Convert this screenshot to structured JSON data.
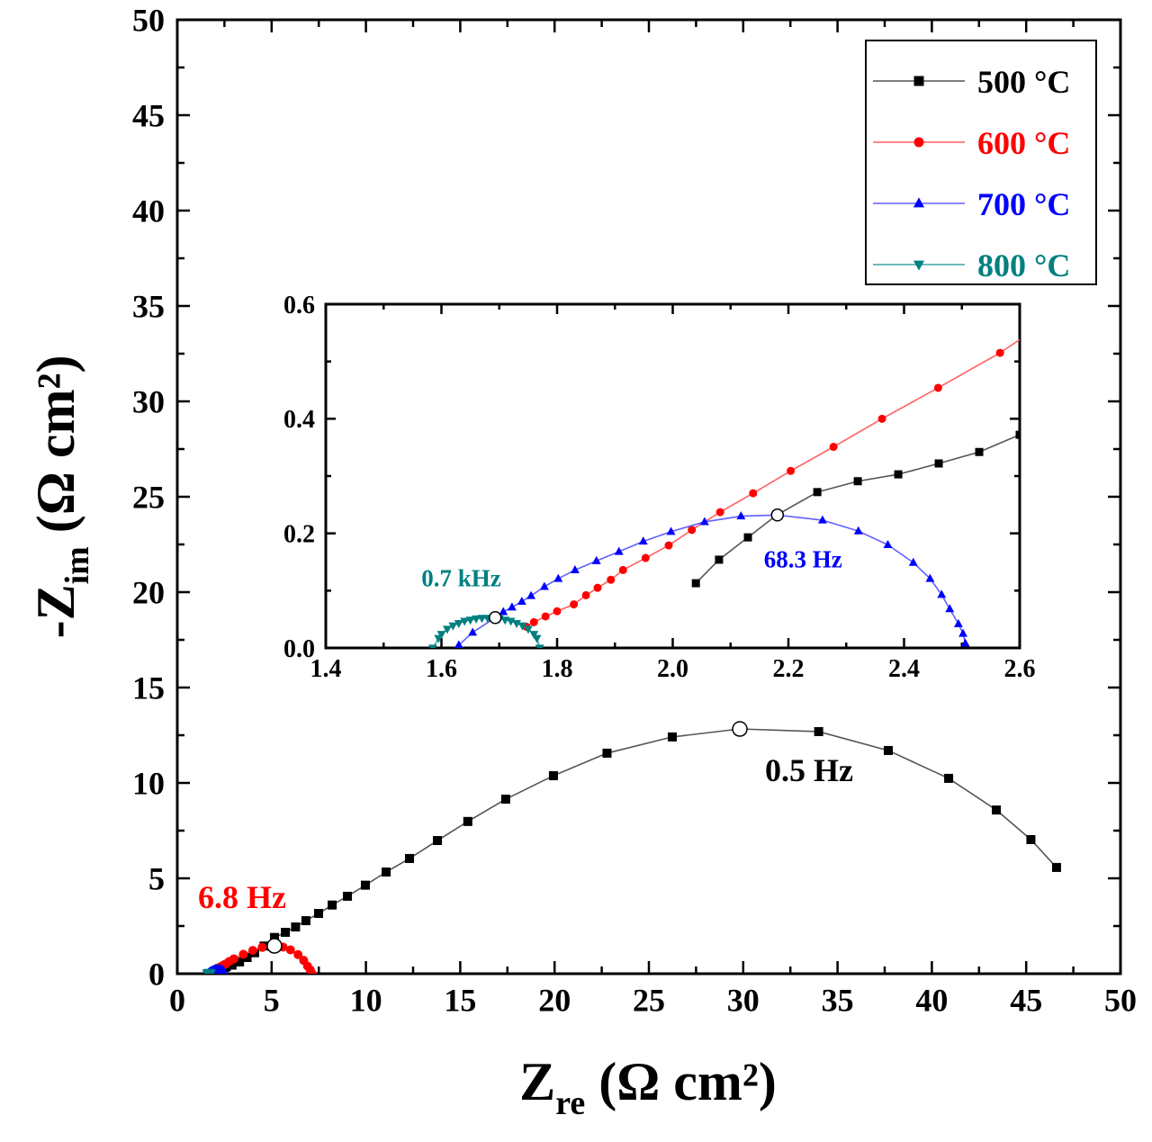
{
  "chart_data": {
    "type": "scatter",
    "main": {
      "xlabel": {
        "base": "Z",
        "sub": "re",
        "unit": "(Ω cm²)"
      },
      "ylabel": {
        "base": "-Z",
        "sub": "im",
        "unit": "(Ω cm²)"
      },
      "xlim": [
        0,
        50
      ],
      "ylim": [
        0,
        50
      ],
      "xticks": [
        0,
        5,
        10,
        15,
        20,
        25,
        30,
        35,
        40,
        45,
        50
      ],
      "yticks": [
        0,
        5,
        10,
        15,
        20,
        25,
        30,
        35,
        40,
        45,
        50
      ],
      "xtick_labels": [
        "0",
        "5",
        "10",
        "15",
        "20",
        "25",
        "30",
        "35",
        "40",
        "45",
        "50"
      ],
      "ytick_labels": [
        "0",
        "5",
        "10",
        "15",
        "20",
        "25",
        "30",
        "35",
        "40",
        "45",
        "50"
      ],
      "minor_step": 2.5,
      "grid": false
    },
    "inset": {
      "xlim": [
        1.4,
        2.6
      ],
      "ylim": [
        0,
        0.6
      ],
      "xticks": [
        1.4,
        1.6,
        1.8,
        2.0,
        2.2,
        2.4,
        2.6
      ],
      "yticks": [
        0,
        0.2,
        0.4,
        0.6
      ],
      "xtick_labels": [
        "1.4",
        "1.6",
        "1.8",
        "2.0",
        "2.2",
        "2.4",
        "2.6"
      ],
      "ytick_labels": [
        "0.0",
        "0.2",
        "0.4",
        "0.6"
      ],
      "minor_step": 0.1,
      "grid": false
    },
    "legend_placement": "top-right",
    "series": [
      {
        "name": "500 °C",
        "color": "#000000",
        "line_color": "#555555",
        "marker": "square",
        "x": [
          2.04,
          2.08,
          2.13,
          2.18,
          2.25,
          2.32,
          2.39,
          2.46,
          2.53,
          2.6,
          2.9,
          3.3,
          3.7,
          4.1,
          4.6,
          5.15,
          5.73,
          6.27,
          6.82,
          7.49,
          8.21,
          9.02,
          9.97,
          11.07,
          12.31,
          13.79,
          15.4,
          17.41,
          19.94,
          22.78,
          26.24,
          29.82,
          34.0,
          37.69,
          40.89,
          43.42,
          45.25,
          46.61
        ],
        "y": [
          0.113,
          0.154,
          0.193,
          0.232,
          0.272,
          0.291,
          0.303,
          0.322,
          0.342,
          0.372,
          0.45,
          0.62,
          0.85,
          1.1,
          1.45,
          1.9,
          2.17,
          2.45,
          2.78,
          3.16,
          3.6,
          4.06,
          4.64,
          5.33,
          6.04,
          6.98,
          7.98,
          9.15,
          10.38,
          11.56,
          12.41,
          12.83,
          12.69,
          11.7,
          10.24,
          8.58,
          7.03,
          5.57
        ]
      },
      {
        "name": "600 °C",
        "color": "#ff0000",
        "line_color": "#ff6060",
        "marker": "circle",
        "x": [
          1.747,
          1.76,
          1.78,
          1.8,
          1.829,
          1.85,
          1.87,
          1.893,
          1.914,
          1.953,
          1.993,
          2.033,
          2.082,
          2.139,
          2.204,
          2.278,
          2.362,
          2.459,
          2.566,
          2.75,
          3.0,
          3.5,
          4.0,
          4.5,
          5.15,
          5.6,
          6.0,
          6.4,
          6.7,
          6.9,
          7.05,
          7.15
        ],
        "y": [
          0.037,
          0.045,
          0.055,
          0.064,
          0.076,
          0.092,
          0.105,
          0.119,
          0.136,
          0.157,
          0.179,
          0.206,
          0.237,
          0.27,
          0.309,
          0.351,
          0.4,
          0.454,
          0.515,
          0.64,
          0.78,
          1.02,
          1.22,
          1.38,
          1.46,
          1.4,
          1.25,
          1.0,
          0.7,
          0.4,
          0.2,
          0.0
        ]
      },
      {
        "name": "700 °C",
        "color": "#0000ff",
        "line_color": "#6060ff",
        "marker": "triangle-up",
        "x": [
          1.63,
          1.654,
          1.693,
          1.707,
          1.722,
          1.739,
          1.755,
          1.778,
          1.802,
          1.831,
          1.868,
          1.907,
          1.949,
          1.997,
          2.055,
          2.118,
          2.181,
          2.259,
          2.321,
          2.372,
          2.416,
          2.445,
          2.465,
          2.479,
          2.494,
          2.502,
          2.506
        ],
        "y": [
          0.005,
          0.027,
          0.053,
          0.063,
          0.071,
          0.081,
          0.091,
          0.107,
          0.121,
          0.136,
          0.152,
          0.168,
          0.186,
          0.203,
          0.22,
          0.23,
          0.232,
          0.223,
          0.204,
          0.18,
          0.149,
          0.121,
          0.093,
          0.068,
          0.042,
          0.025,
          0.008
        ]
      },
      {
        "name": "800 °C",
        "color": "#008080",
        "line_color": "#40a0a0",
        "marker": "triangle-down",
        "x": [
          1.585,
          1.595,
          1.6,
          1.61,
          1.62,
          1.63,
          1.64,
          1.65,
          1.66,
          1.67,
          1.68,
          1.69,
          1.7,
          1.71,
          1.72,
          1.73,
          1.74,
          1.75,
          1.76,
          1.765,
          1.77
        ],
        "y": [
          0.0,
          0.017,
          0.024,
          0.033,
          0.039,
          0.043,
          0.047,
          0.049,
          0.051,
          0.052,
          0.052,
          0.052,
          0.051,
          0.049,
          0.047,
          0.043,
          0.039,
          0.033,
          0.024,
          0.017,
          0.0
        ]
      }
    ],
    "annotations": [
      {
        "text": "0.5 Hz",
        "color": "#000000",
        "x": 29.82,
        "y": 12.83,
        "panel": "main"
      },
      {
        "text": "6.8 Hz",
        "color": "#ff0000",
        "x": 5.15,
        "y": 1.46,
        "panel": "main"
      },
      {
        "text": "68.3 Hz",
        "color": "#0000ff",
        "x": 2.181,
        "y": 0.232,
        "panel": "inset"
      },
      {
        "text": "0.7 kHz",
        "color": "#008080",
        "x": 1.693,
        "y": 0.053,
        "panel": "inset"
      }
    ]
  }
}
